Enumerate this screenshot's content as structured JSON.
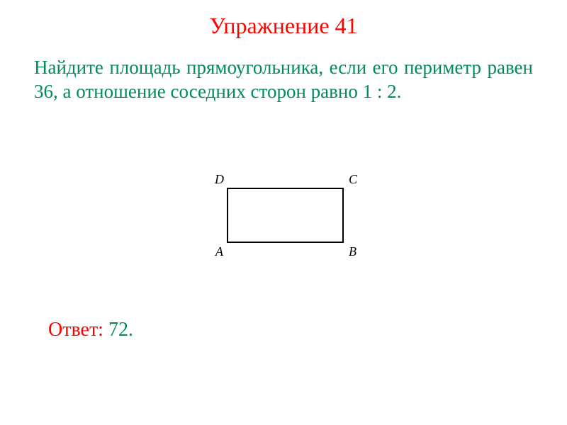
{
  "title": "Упражнение 41",
  "problem": "Найдите площадь прямоугольника, если его периметр равен 36, а отношение соседних сторон равно 1 : 2.",
  "diagram": {
    "labels": {
      "topLeft": "D",
      "topRight": "C",
      "bottomLeft": "A",
      "bottomRight": "B"
    },
    "rectangle": {
      "width": 165,
      "height": 78,
      "borderColor": "#000000",
      "borderWidth": 2
    }
  },
  "answer": {
    "label": "Ответ:",
    "value": " 72."
  },
  "colors": {
    "title": "#ff0000",
    "problem": "#008b5e",
    "answerLabel": "#ff0000",
    "answerValue": "#008b5e",
    "background": "#ffffff"
  },
  "typography": {
    "titleSize": 32,
    "problemSize": 27,
    "answerSize": 28,
    "labelSize": 18,
    "fontFamily": "Times New Roman"
  }
}
